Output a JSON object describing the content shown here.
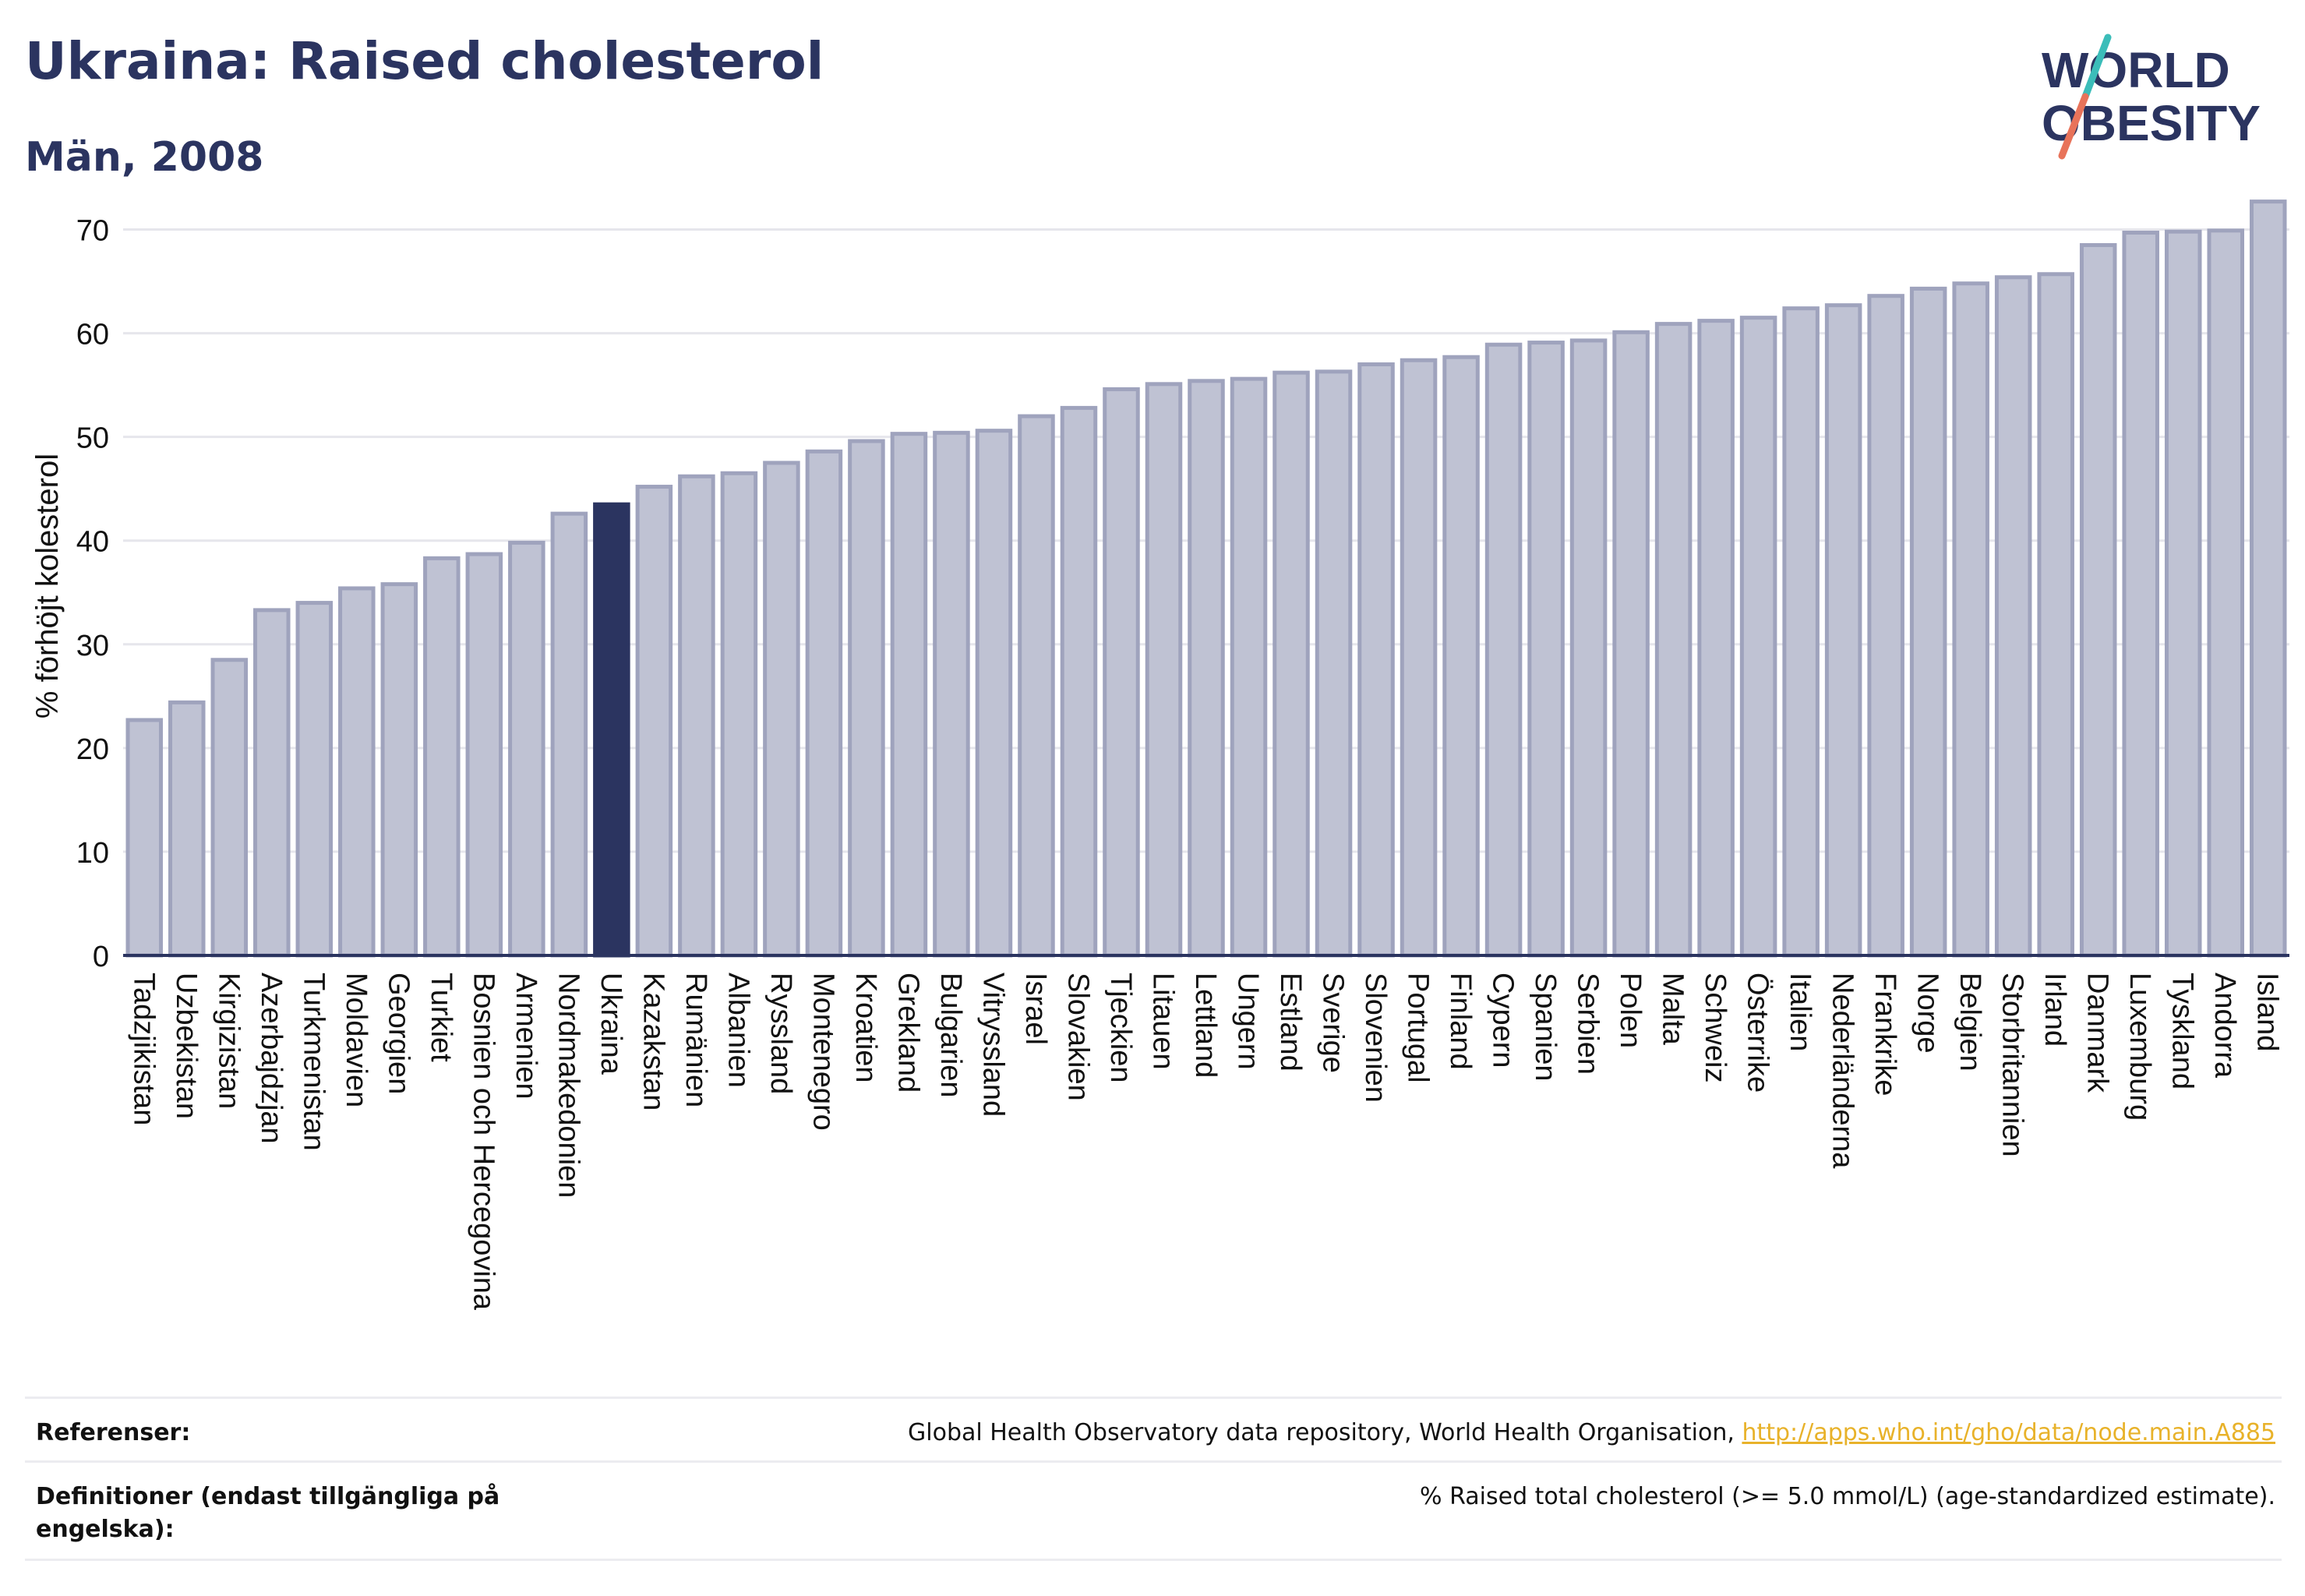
{
  "header": {
    "title": "Ukraina: Raised cholesterol",
    "subtitle": "Män, 2008"
  },
  "logo": {
    "line1": "WORLD",
    "line2": "OBESITY",
    "text_color": "#2b3460",
    "slash_color_top": "#3bbdb9",
    "slash_color_bottom": "#e8735a"
  },
  "colors": {
    "bar": "#bfc2d3",
    "bar_stroke": "#9fa3bd",
    "highlight": "#2b3460",
    "grid": "#e6e6ec",
    "text": "#2b3460"
  },
  "chart_data": {
    "type": "bar",
    "ylabel": "% förhöjt kolesterol",
    "ylim": [
      0,
      75
    ],
    "yticks": [
      0,
      10,
      20,
      30,
      40,
      50,
      60,
      70
    ],
    "highlight": "Ukraina",
    "categories": [
      "Tadzjikistan",
      "Uzbekistan",
      "Kirgizistan",
      "Azerbajdzjan",
      "Turkmenistan",
      "Moldavien",
      "Georgien",
      "Turkiet",
      "Bosnien och Hercegovina",
      "Armenien",
      "Nordmakedonien",
      "Ukraina",
      "Kazakstan",
      "Rumänien",
      "Albanien",
      "Ryssland",
      "Montenegro",
      "Kroatien",
      "Grekland",
      "Bulgarien",
      "Vitryssland",
      "Israel",
      "Slovakien",
      "Tjeckien",
      "Litauen",
      "Lettland",
      "Ungern",
      "Estland",
      "Sverige",
      "Slovenien",
      "Portugal",
      "Finland",
      "Cypern",
      "Spanien",
      "Serbien",
      "Polen",
      "Malta",
      "Schweiz",
      "Österrike",
      "Italien",
      "Nederländerna",
      "Frankrike",
      "Norge",
      "Belgien",
      "Storbritannien",
      "Irland",
      "Danmark",
      "Luxemburg",
      "Tyskland",
      "Andorra",
      "Island"
    ],
    "values": [
      22.7,
      24.4,
      28.5,
      33.3,
      34.0,
      35.4,
      35.8,
      38.3,
      38.7,
      39.8,
      42.6,
      43.5,
      45.2,
      46.2,
      46.5,
      47.5,
      48.6,
      49.6,
      50.3,
      50.4,
      50.6,
      52.0,
      52.8,
      54.6,
      55.1,
      55.4,
      55.6,
      56.2,
      56.3,
      57.0,
      57.4,
      57.7,
      58.9,
      59.1,
      59.3,
      60.1,
      60.9,
      61.2,
      61.5,
      62.4,
      62.7,
      63.6,
      64.3,
      64.8,
      65.4,
      65.7,
      68.5,
      69.7,
      69.8,
      69.9,
      72.7
    ]
  },
  "footer": {
    "references_label": "Referenser:",
    "references_text": "Global Health Observatory data repository, World Health Organisation, ",
    "references_link": "http://apps.who.int/gho/data/node.main.A885",
    "definitions_label": "Definitioner (endast tillgängliga på engelska):",
    "definitions_text": "% Raised total cholesterol (>= 5.0 mmol/L) (age-standardized estimate)."
  }
}
